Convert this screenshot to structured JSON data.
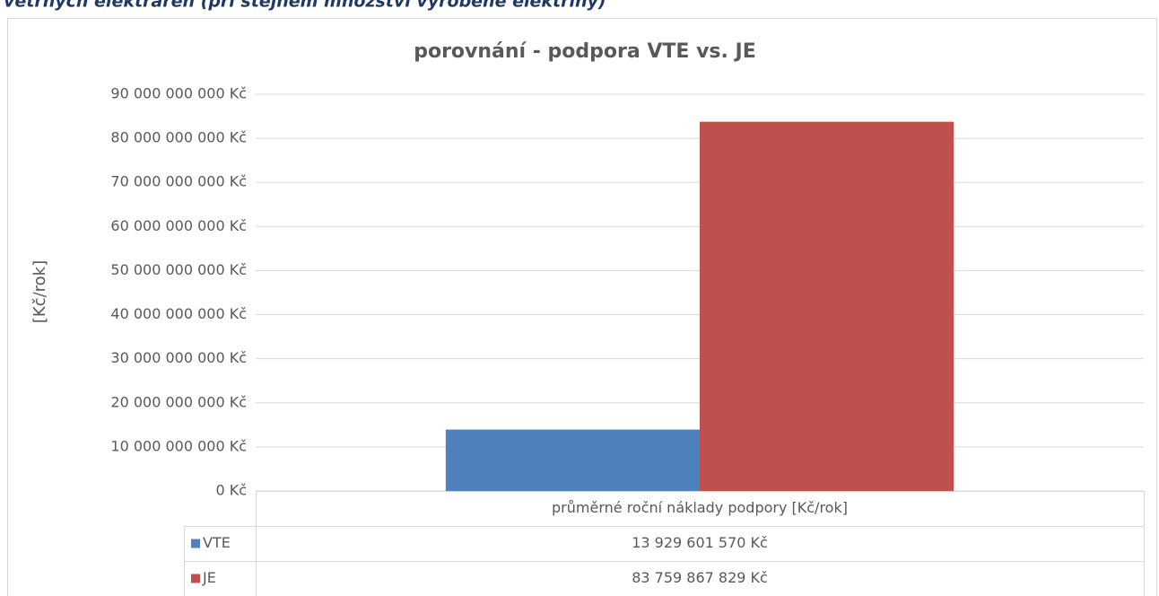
{
  "caption": "větrných elektráren (při stejném množství vyrobené elektřiny)",
  "chart_data": {
    "type": "bar",
    "title": "porovnání - podpora VTE vs. JE",
    "y_label": "[Kč/rok]",
    "categories": [
      "průměrné roční náklady podpory [Kč/rok]"
    ],
    "series": [
      {
        "name": "VTE",
        "color": "#4f81bd",
        "values": [
          13929601570
        ],
        "value_labels": [
          "13 929 601 570 Kč"
        ]
      },
      {
        "name": "JE",
        "color": "#c0504d",
        "values": [
          83759867829
        ],
        "value_labels": [
          "83 759 867 829 Kč"
        ]
      }
    ],
    "ylim": [
      0,
      90000000000
    ],
    "yticks": [
      {
        "value": 0,
        "label": "0 Kč"
      },
      {
        "value": 10000000000,
        "label": "10 000 000 000 Kč"
      },
      {
        "value": 20000000000,
        "label": "20 000 000 000 Kč"
      },
      {
        "value": 30000000000,
        "label": "30 000 000 000 Kč"
      },
      {
        "value": 40000000000,
        "label": "40 000 000 000 Kč"
      },
      {
        "value": 50000000000,
        "label": "50 000 000 000 Kč"
      },
      {
        "value": 60000000000,
        "label": "60 000 000 000 Kč"
      },
      {
        "value": 70000000000,
        "label": "70 000 000 000 Kč"
      },
      {
        "value": 80000000000,
        "label": "80 000 000 000 Kč"
      },
      {
        "value": 90000000000,
        "label": "90 000 000 000 Kč"
      }
    ],
    "grid": true
  }
}
